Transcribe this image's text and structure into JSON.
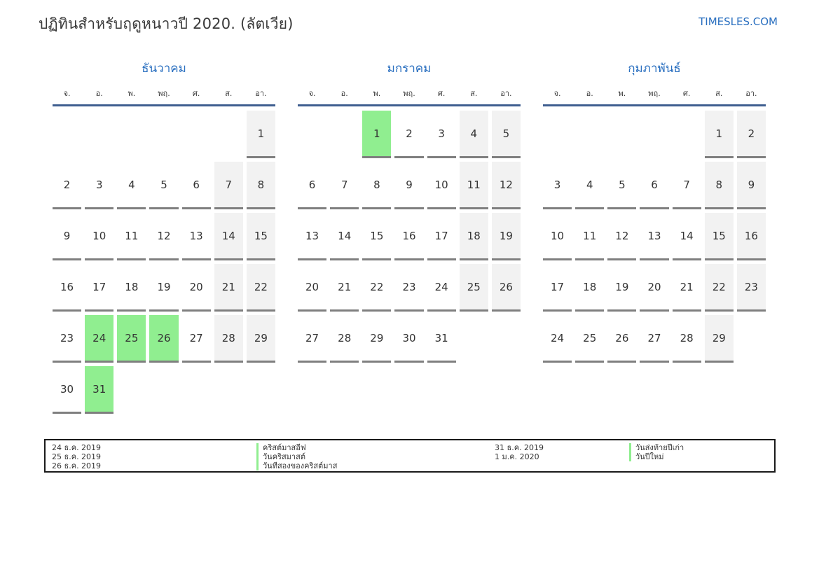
{
  "header": {
    "title": "ปฏิทินสำหรับฤดูหนาวปี 2020. (ลัตเวีย)",
    "brand": "TIMESLES.COM"
  },
  "weekdays": [
    "จ.",
    "อ.",
    "พ.",
    "พฤ.",
    "ศ.",
    "ส.",
    "อา."
  ],
  "months": [
    {
      "title": "ธันวาคม",
      "weeks": [
        [
          null,
          null,
          null,
          null,
          null,
          null,
          {
            "d": "1",
            "t": "w"
          }
        ],
        [
          {
            "d": "2",
            "t": "n"
          },
          {
            "d": "3",
            "t": "n"
          },
          {
            "d": "4",
            "t": "n"
          },
          {
            "d": "5",
            "t": "n"
          },
          {
            "d": "6",
            "t": "n"
          },
          {
            "d": "7",
            "t": "w"
          },
          {
            "d": "8",
            "t": "w"
          }
        ],
        [
          {
            "d": "9",
            "t": "n"
          },
          {
            "d": "10",
            "t": "n"
          },
          {
            "d": "11",
            "t": "n"
          },
          {
            "d": "12",
            "t": "n"
          },
          {
            "d": "13",
            "t": "n"
          },
          {
            "d": "14",
            "t": "w"
          },
          {
            "d": "15",
            "t": "w"
          }
        ],
        [
          {
            "d": "16",
            "t": "n"
          },
          {
            "d": "17",
            "t": "n"
          },
          {
            "d": "18",
            "t": "n"
          },
          {
            "d": "19",
            "t": "n"
          },
          {
            "d": "20",
            "t": "n"
          },
          {
            "d": "21",
            "t": "w"
          },
          {
            "d": "22",
            "t": "w"
          }
        ],
        [
          {
            "d": "23",
            "t": "n"
          },
          {
            "d": "24",
            "t": "h"
          },
          {
            "d": "25",
            "t": "h"
          },
          {
            "d": "26",
            "t": "h"
          },
          {
            "d": "27",
            "t": "n"
          },
          {
            "d": "28",
            "t": "w"
          },
          {
            "d": "29",
            "t": "w"
          }
        ],
        [
          {
            "d": "30",
            "t": "n"
          },
          {
            "d": "31",
            "t": "h"
          },
          null,
          null,
          null,
          null,
          null
        ]
      ]
    },
    {
      "title": "มกราคม",
      "weeks": [
        [
          null,
          null,
          {
            "d": "1",
            "t": "h"
          },
          {
            "d": "2",
            "t": "n"
          },
          {
            "d": "3",
            "t": "n"
          },
          {
            "d": "4",
            "t": "w"
          },
          {
            "d": "5",
            "t": "w"
          }
        ],
        [
          {
            "d": "6",
            "t": "n"
          },
          {
            "d": "7",
            "t": "n"
          },
          {
            "d": "8",
            "t": "n"
          },
          {
            "d": "9",
            "t": "n"
          },
          {
            "d": "10",
            "t": "n"
          },
          {
            "d": "11",
            "t": "w"
          },
          {
            "d": "12",
            "t": "w"
          }
        ],
        [
          {
            "d": "13",
            "t": "n"
          },
          {
            "d": "14",
            "t": "n"
          },
          {
            "d": "15",
            "t": "n"
          },
          {
            "d": "16",
            "t": "n"
          },
          {
            "d": "17",
            "t": "n"
          },
          {
            "d": "18",
            "t": "w"
          },
          {
            "d": "19",
            "t": "w"
          }
        ],
        [
          {
            "d": "20",
            "t": "n"
          },
          {
            "d": "21",
            "t": "n"
          },
          {
            "d": "22",
            "t": "n"
          },
          {
            "d": "23",
            "t": "n"
          },
          {
            "d": "24",
            "t": "n"
          },
          {
            "d": "25",
            "t": "w"
          },
          {
            "d": "26",
            "t": "w"
          }
        ],
        [
          {
            "d": "27",
            "t": "n"
          },
          {
            "d": "28",
            "t": "n"
          },
          {
            "d": "29",
            "t": "n"
          },
          {
            "d": "30",
            "t": "n"
          },
          {
            "d": "31",
            "t": "n"
          },
          null,
          null
        ]
      ]
    },
    {
      "title": "กุมภาพันธ์",
      "weeks": [
        [
          null,
          null,
          null,
          null,
          null,
          {
            "d": "1",
            "t": "w"
          },
          {
            "d": "2",
            "t": "w"
          }
        ],
        [
          {
            "d": "3",
            "t": "n"
          },
          {
            "d": "4",
            "t": "n"
          },
          {
            "d": "5",
            "t": "n"
          },
          {
            "d": "6",
            "t": "n"
          },
          {
            "d": "7",
            "t": "n"
          },
          {
            "d": "8",
            "t": "w"
          },
          {
            "d": "9",
            "t": "w"
          }
        ],
        [
          {
            "d": "10",
            "t": "n"
          },
          {
            "d": "11",
            "t": "n"
          },
          {
            "d": "12",
            "t": "n"
          },
          {
            "d": "13",
            "t": "n"
          },
          {
            "d": "14",
            "t": "n"
          },
          {
            "d": "15",
            "t": "w"
          },
          {
            "d": "16",
            "t": "w"
          }
        ],
        [
          {
            "d": "17",
            "t": "n"
          },
          {
            "d": "18",
            "t": "n"
          },
          {
            "d": "19",
            "t": "n"
          },
          {
            "d": "20",
            "t": "n"
          },
          {
            "d": "21",
            "t": "n"
          },
          {
            "d": "22",
            "t": "w"
          },
          {
            "d": "23",
            "t": "w"
          }
        ],
        [
          {
            "d": "24",
            "t": "n"
          },
          {
            "d": "25",
            "t": "n"
          },
          {
            "d": "26",
            "t": "n"
          },
          {
            "d": "27",
            "t": "n"
          },
          {
            "d": "28",
            "t": "n"
          },
          {
            "d": "29",
            "t": "w"
          },
          null
        ]
      ]
    }
  ],
  "legend": {
    "groups": [
      {
        "entries": [
          {
            "date": "24 ธ.ค. 2019",
            "name": "คริสต์มาสอีฟ"
          },
          {
            "date": "25 ธ.ค. 2019",
            "name": "วันคริสมาสต์"
          },
          {
            "date": "26 ธ.ค. 2019",
            "name": "วันที่สองของคริสต์มาส"
          }
        ]
      },
      {
        "entries": [
          {
            "date": "31 ธ.ค. 2019",
            "name": "วันส่งท้ายปีเก่า"
          },
          {
            "date": "1 ม.ค. 2020",
            "name": "วันปีใหม่"
          }
        ]
      }
    ]
  },
  "colors": {
    "accent": "#2b70c0",
    "headline_rule": "#3f5e90",
    "weekend_bg": "#f2f2f2",
    "holiday_bg": "#90ee90",
    "cell_rule": "#7f7f7f"
  }
}
